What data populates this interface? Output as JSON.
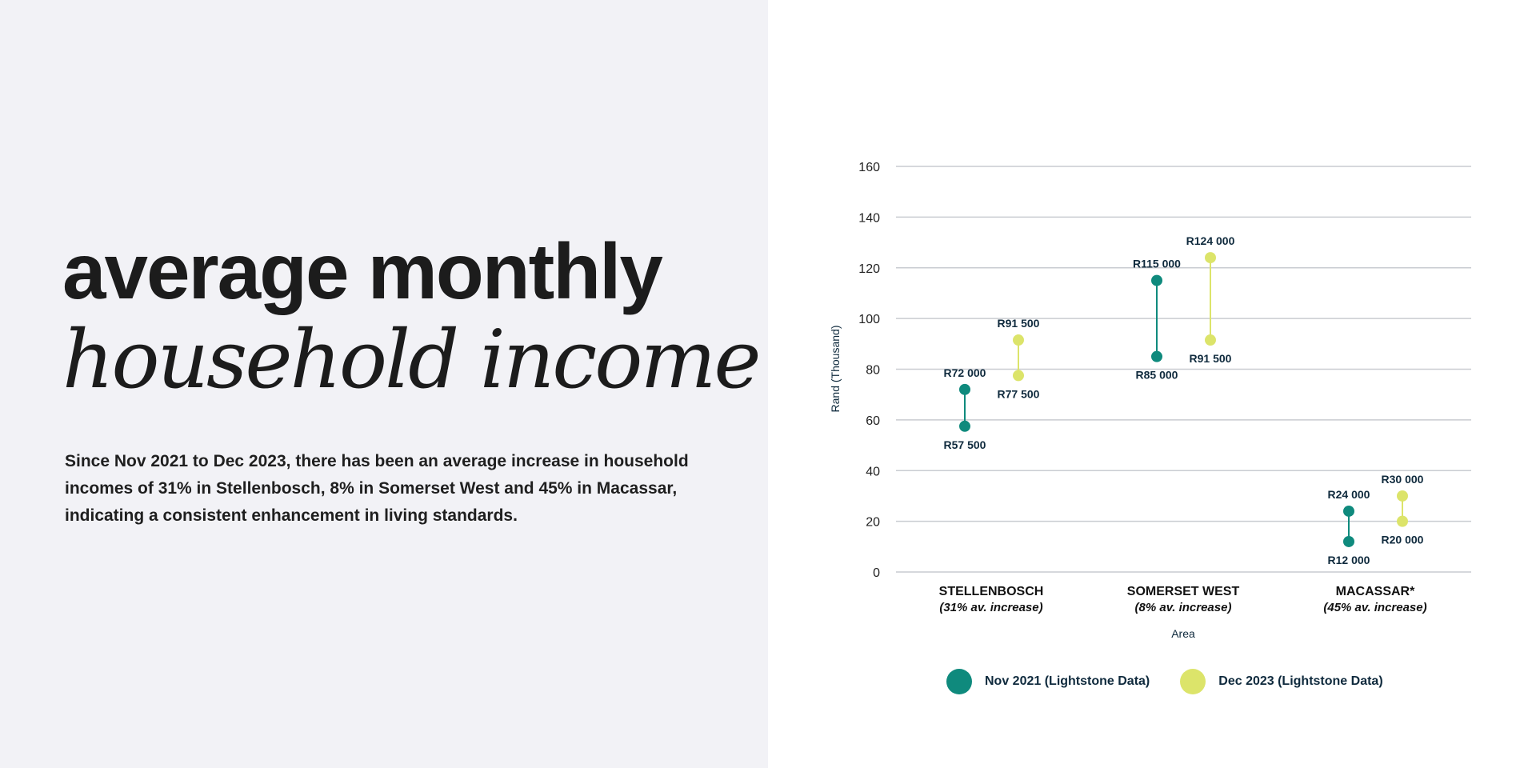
{
  "heading": {
    "line1": "average monthly",
    "line2": "household income"
  },
  "description": "Since Nov 2021 to Dec 2023, there has been an average increase in household incomes of 31% in Stellenbosch, 8% in Somerset West and 45% in Macassar, indicating a consistent enhancement in living standards.",
  "colors": {
    "nov": "#0f8a7d",
    "dec": "#dce46a",
    "text": "#0f2a3d",
    "grid": "#c9ccd1"
  },
  "chart_data": {
    "type": "dumbbell",
    "ylabel": "Rand (Thousand)",
    "xlabel": "Area",
    "ylim": [
      0,
      160
    ],
    "yticks": [
      0,
      20,
      40,
      60,
      80,
      100,
      120,
      140,
      160
    ],
    "grid": true,
    "legend_position": "bottom",
    "categories": [
      {
        "name": "STELLENBOSCH",
        "sub": "(31% av. increase)"
      },
      {
        "name": "SOMERSET WEST",
        "sub": "(8% av. increase)"
      },
      {
        "name": "MACASSAR*",
        "sub": "(45% av. increase)"
      }
    ],
    "series": [
      {
        "name": "Nov 2021 (Lightstone Data)",
        "color_key": "nov",
        "ranges": [
          [
            57.5,
            72
          ],
          [
            85,
            115
          ],
          [
            12,
            24
          ]
        ],
        "labels": [
          [
            "R57 500",
            "R72 000"
          ],
          [
            "R85 000",
            "R115 000"
          ],
          [
            "R12 000",
            "R24 000"
          ]
        ]
      },
      {
        "name": "Dec 2023 (Lightstone Data)",
        "color_key": "dec",
        "ranges": [
          [
            77.5,
            91.5
          ],
          [
            91.5,
            124
          ],
          [
            20,
            30
          ]
        ],
        "labels": [
          [
            "R77 500",
            "R91 500"
          ],
          [
            "R91 500",
            "R124 000"
          ],
          [
            "R20 000",
            "R30 000"
          ]
        ]
      }
    ]
  }
}
